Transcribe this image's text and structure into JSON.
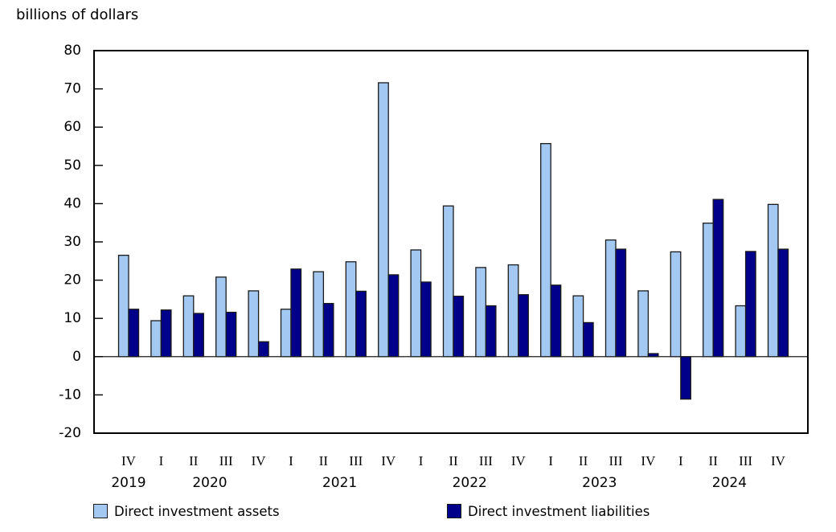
{
  "chart_data": {
    "type": "bar",
    "title": "billions of dollars",
    "xlabel": "",
    "ylabel": "billions of dollars",
    "ylim": [
      -20,
      80
    ],
    "y_ticks": [
      80,
      70,
      60,
      50,
      40,
      30,
      20,
      10,
      0,
      -10,
      -20
    ],
    "grid": false,
    "legend_position": "bottom",
    "quarters": [
      "IV",
      "I",
      "II",
      "III",
      "IV",
      "I",
      "II",
      "III",
      "IV",
      "I",
      "II",
      "III",
      "IV",
      "I",
      "II",
      "III",
      "IV",
      "I",
      "II",
      "III",
      "IV"
    ],
    "years": [
      {
        "label": "2019",
        "quarter_indexes": [
          0,
          0
        ]
      },
      {
        "label": "2020",
        "quarter_indexes": [
          1,
          4
        ]
      },
      {
        "label": "2021",
        "quarter_indexes": [
          5,
          8
        ]
      },
      {
        "label": "2022",
        "quarter_indexes": [
          9,
          12
        ]
      },
      {
        "label": "2023",
        "quarter_indexes": [
          13,
          16
        ]
      },
      {
        "label": "2024",
        "quarter_indexes": [
          17,
          20
        ]
      }
    ],
    "series": [
      {
        "name": "Direct investment assets",
        "color": "#a3c9f2",
        "values": [
          26.5,
          9.4,
          15.9,
          20.8,
          17.2,
          12.4,
          22.2,
          24.8,
          71.6,
          27.9,
          39.4,
          23.3,
          24.0,
          55.7,
          15.9,
          30.5,
          17.2,
          27.4,
          34.9,
          13.3,
          39.8
        ]
      },
      {
        "name": "Direct investment liabilities",
        "color": "#00008b",
        "values": [
          12.4,
          12.2,
          11.3,
          11.6,
          3.9,
          22.9,
          13.9,
          17.1,
          21.4,
          19.5,
          15.8,
          13.3,
          16.2,
          18.7,
          8.9,
          28.1,
          0.8,
          -11.1,
          41.1,
          27.5,
          28.1
        ]
      }
    ]
  }
}
